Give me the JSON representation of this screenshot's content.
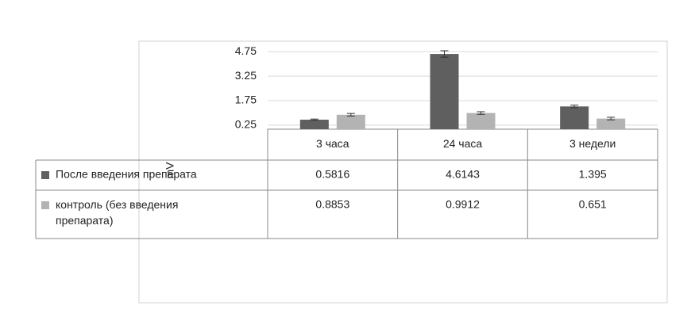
{
  "chart_data": {
    "type": "bar",
    "y_label": "mV",
    "categories": [
      "3 часа",
      "24 часа",
      "3 недели"
    ],
    "series": [
      {
        "name": "После введения препарата",
        "color": "#5f5f5f",
        "values": [
          0.5816,
          4.6143,
          1.395
        ],
        "errors": [
          0.04,
          0.2,
          0.08
        ]
      },
      {
        "name": "контроль (без введения препарата)",
        "color": "#b3b3b3",
        "values": [
          0.8853,
          0.9912,
          0.651
        ],
        "errors": [
          0.08,
          0.08,
          0.08
        ]
      }
    ],
    "ylim": [
      0,
      5.25
    ],
    "yticks": [
      0.25,
      1.75,
      3.25,
      4.75
    ],
    "grid": true
  }
}
